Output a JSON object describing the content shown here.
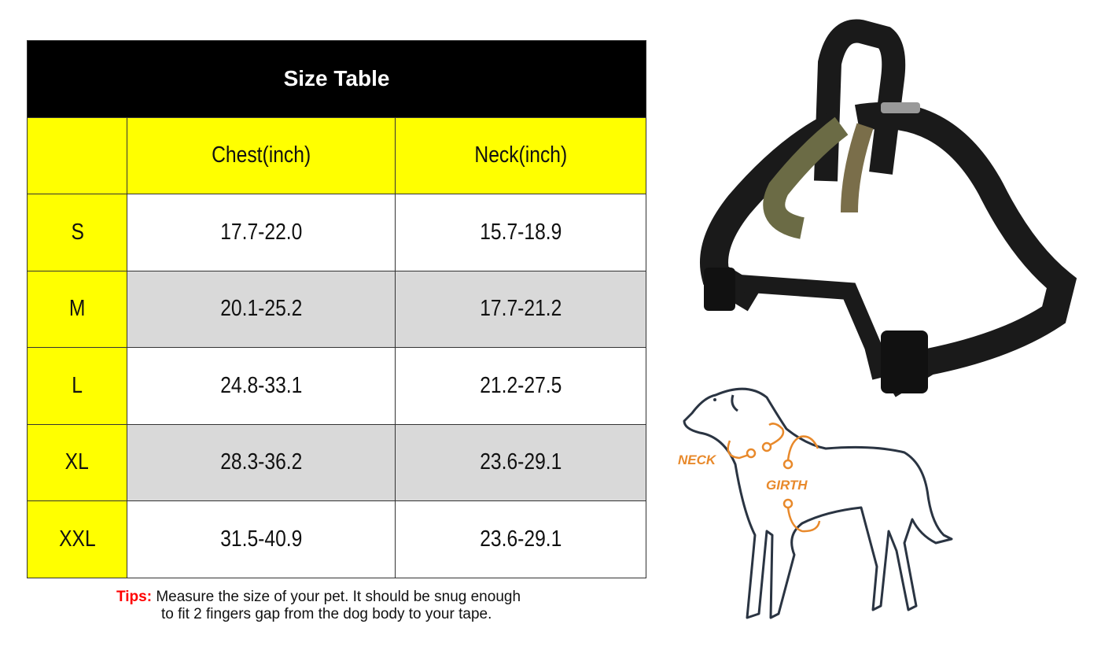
{
  "table": {
    "title": "Size Table",
    "headers": [
      "",
      "Chest(inch)",
      "Neck(inch)"
    ],
    "rows": [
      {
        "size": "S",
        "chest": "17.7-22.0",
        "neck": "15.7-18.9"
      },
      {
        "size": "M",
        "chest": "20.1-25.2",
        "neck": "17.7-21.2"
      },
      {
        "size": "L",
        "chest": "24.8-33.1",
        "neck": "21.2-27.5"
      },
      {
        "size": "XL",
        "chest": "28.3-36.2",
        "neck": "23.6-29.1"
      },
      {
        "size": "XXL",
        "chest": "31.5-40.9",
        "neck": "23.6-29.1"
      }
    ]
  },
  "tips": {
    "label": "Tips:",
    "line1": "Measure the size of your pet. It should be snug enough",
    "line2": "to fit 2 fingers gap from the dog body to your tape."
  },
  "diagram": {
    "neck_label": "NECK",
    "girth_label": "GIRTH",
    "accent_color": "#e8892b",
    "outline_color": "#2a3442"
  },
  "colors": {
    "header_bg": "#000000",
    "size_col": "#ffff00",
    "alt_row": "#d9d9d9",
    "tips_label": "#ff0000"
  }
}
